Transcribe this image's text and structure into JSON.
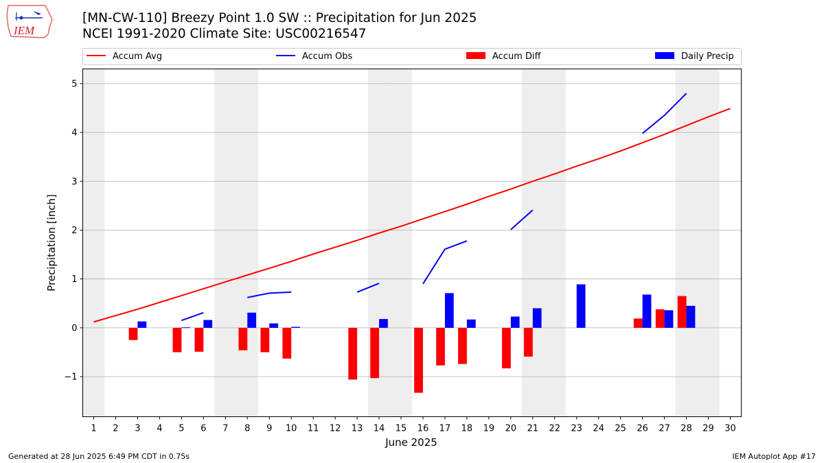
{
  "header": {
    "logo_text": "IEM",
    "title_line1": "[MN-CW-110] Breezy Point 1.0 SW :: Precipitation for Jun 2025",
    "title_line2": "NCEI 1991-2020 Climate Site: USC00216547"
  },
  "footer": {
    "left": "Generated at 28 Jun 2025 6:49 PM CDT in 0.75s",
    "right": "IEM Autoplot App #17"
  },
  "colors": {
    "accum_avg": "#ff0000",
    "accum_obs": "#0000ff",
    "accum_diff": "#ff0000",
    "daily_precip": "#0000ff",
    "weekend_shade": "#eeeeee",
    "grid": "#b0b0b0"
  },
  "chart_data": {
    "type": "bar",
    "xlabel": "June 2025",
    "ylabel": "Precipitation [inch]",
    "xlim": [
      0.5,
      30.5
    ],
    "ylim": [
      -1.82,
      5.3
    ],
    "x_ticks": [
      1,
      2,
      3,
      4,
      5,
      6,
      7,
      8,
      9,
      10,
      11,
      12,
      13,
      14,
      15,
      16,
      17,
      18,
      19,
      20,
      21,
      22,
      23,
      24,
      25,
      26,
      27,
      28,
      29,
      30
    ],
    "y_ticks": [
      -1,
      0,
      1,
      2,
      3,
      4,
      5
    ],
    "y_tick_labels": [
      "−1",
      "0",
      "1",
      "2",
      "3",
      "4",
      "5"
    ],
    "grid": "horizontal",
    "legend_position": "top",
    "weekend_days": [
      1,
      7,
      8,
      14,
      15,
      21,
      22,
      28,
      29
    ],
    "series": [
      {
        "name": "Accum Avg",
        "kind": "line",
        "x": [
          1,
          2,
          3,
          4,
          5,
          6,
          7,
          8,
          9,
          10,
          11,
          12,
          13,
          14,
          15,
          16,
          17,
          18,
          19,
          20,
          21,
          22,
          23,
          24,
          25,
          26,
          27,
          28,
          29,
          30
        ],
        "values": [
          0.12,
          0.25,
          0.38,
          0.52,
          0.66,
          0.8,
          0.94,
          1.08,
          1.22,
          1.36,
          1.51,
          1.65,
          1.79,
          1.94,
          2.08,
          2.23,
          2.38,
          2.53,
          2.69,
          2.84,
          3.0,
          3.15,
          3.31,
          3.46,
          3.62,
          3.79,
          3.96,
          4.14,
          4.32,
          4.49
        ]
      },
      {
        "name": "Accum Obs",
        "kind": "line",
        "segments": [
          {
            "x": [
              5,
              6
            ],
            "values": [
              0.15,
              0.31
            ]
          },
          {
            "x": [
              8,
              9,
              10
            ],
            "values": [
              0.62,
              0.71,
              0.73
            ]
          },
          {
            "x": [
              13,
              14
            ],
            "values": [
              0.73,
              0.91
            ]
          },
          {
            "x": [
              16,
              17,
              18
            ],
            "values": [
              0.9,
              1.61,
              1.78
            ]
          },
          {
            "x": [
              20,
              21
            ],
            "values": [
              2.01,
              2.41
            ]
          },
          {
            "x": [
              26,
              27,
              28
            ],
            "values": [
              3.98,
              4.35,
              4.8
            ]
          }
        ]
      },
      {
        "name": "Accum Diff",
        "kind": "bar",
        "x": [
          3,
          5,
          6,
          8,
          9,
          10,
          13,
          14,
          16,
          17,
          18,
          20,
          21,
          26,
          27,
          28
        ],
        "values": [
          -0.25,
          -0.5,
          -0.49,
          -0.46,
          -0.5,
          -0.63,
          -1.06,
          -1.03,
          -1.33,
          -0.77,
          -0.74,
          -0.83,
          -0.59,
          0.19,
          0.38,
          0.65
        ]
      },
      {
        "name": "Daily Precip",
        "kind": "bar",
        "x": [
          3,
          5,
          6,
          8,
          9,
          10,
          14,
          17,
          18,
          20,
          21,
          23,
          26,
          27,
          28
        ],
        "values": [
          0.13,
          0.01,
          0.16,
          0.31,
          0.09,
          0.02,
          0.18,
          0.71,
          0.17,
          0.23,
          0.4,
          0.89,
          0.68,
          0.36,
          0.45
        ]
      }
    ]
  }
}
